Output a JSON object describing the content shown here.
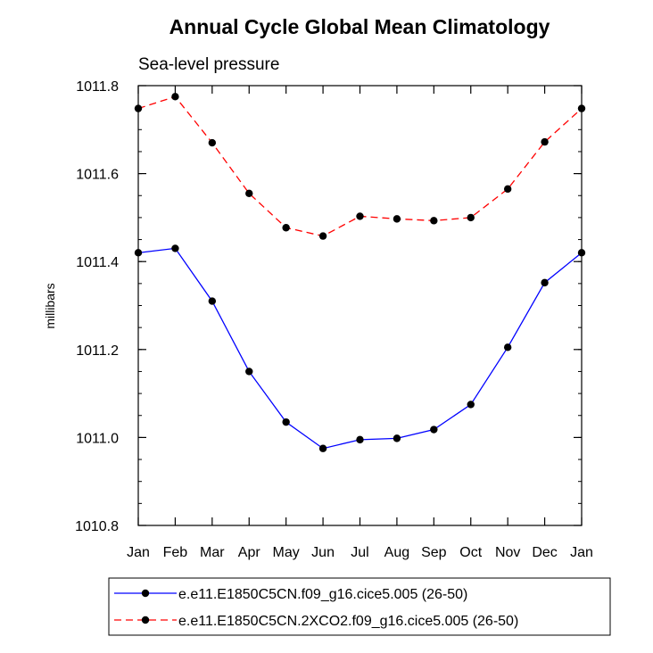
{
  "chart_data": {
    "type": "line",
    "title": "Annual Cycle Global Mean Climatology",
    "subtitle": "Sea-level pressure",
    "xlabel": "",
    "ylabel": "millibars",
    "categories": [
      "Jan",
      "Feb",
      "Mar",
      "Apr",
      "May",
      "Jun",
      "Jul",
      "Aug",
      "Sep",
      "Oct",
      "Nov",
      "Dec",
      "Jan"
    ],
    "ylim": [
      1010.8,
      1011.8
    ],
    "yticks": [
      "1010.8",
      "1011.0",
      "1011.2",
      "1011.4",
      "1011.6",
      "1011.8"
    ],
    "grid": false,
    "legend_position": "bottom",
    "series": [
      {
        "name": "e.e11.E1850C5CN.f09_g16.cice5.005 (26-50)",
        "color": "#0000ff",
        "dash": "solid",
        "marker": "circle",
        "values": [
          1011.42,
          1011.43,
          1011.31,
          1011.15,
          1011.035,
          1010.975,
          1010.995,
          1010.998,
          1011.018,
          1011.075,
          1011.205,
          1011.352,
          1011.42
        ]
      },
      {
        "name": "e.e11.E1850C5CN.2XCO2.f09_g16.cice5.005 (26-50)",
        "color": "#ff0000",
        "dash": "dashed",
        "marker": "circle",
        "values": [
          1011.748,
          1011.775,
          1011.67,
          1011.555,
          1011.477,
          1011.458,
          1011.503,
          1011.497,
          1011.493,
          1011.5,
          1011.565,
          1011.672,
          1011.748
        ]
      }
    ]
  }
}
